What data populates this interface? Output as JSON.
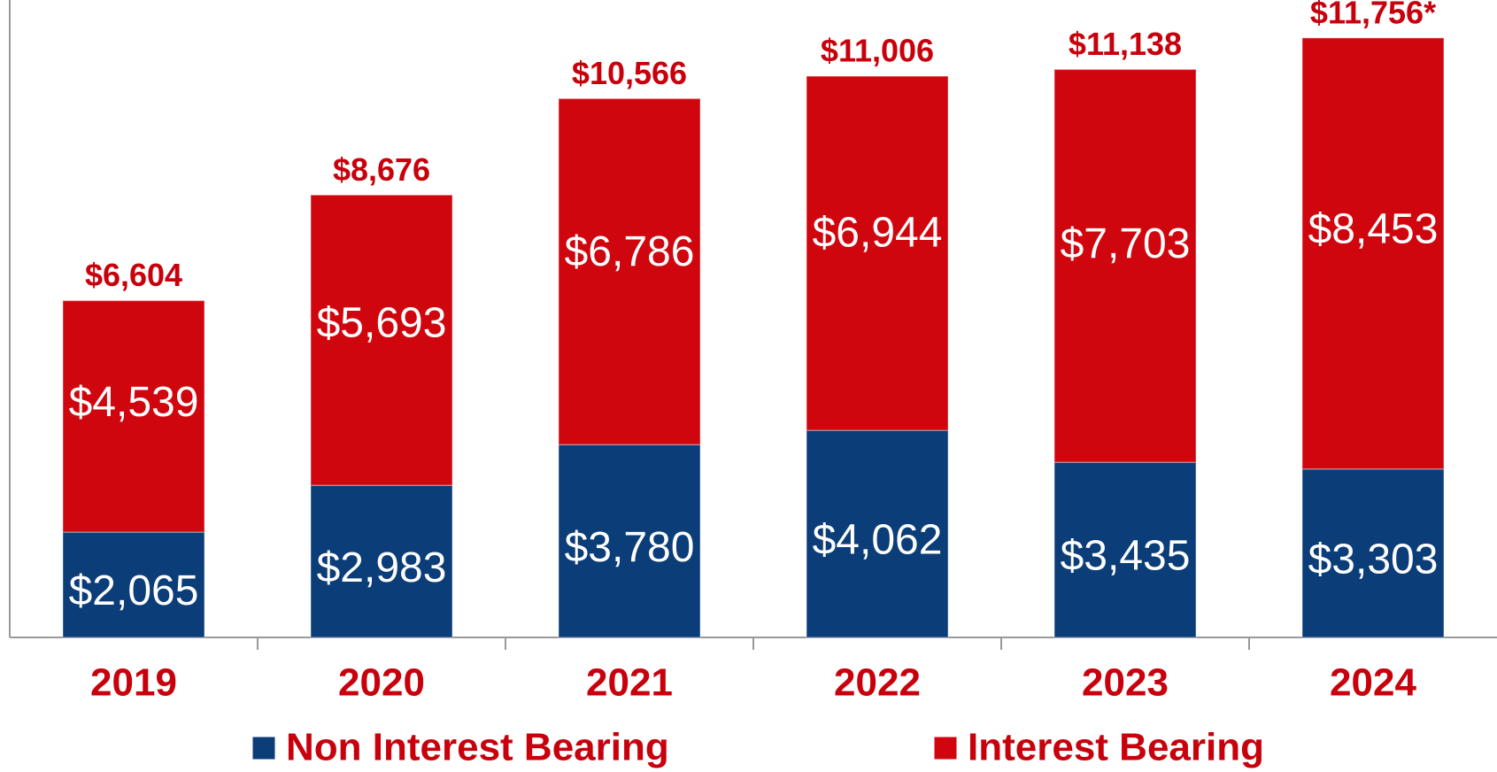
{
  "chart_data": {
    "type": "stacked_bar",
    "categories": [
      "2019",
      "2020",
      "2021",
      "2022",
      "2023",
      "2024"
    ],
    "series": [
      {
        "name": "Non Interest Bearing",
        "color": "#0b3d78",
        "values": [
          2065,
          2983,
          3780,
          4062,
          3435,
          3303
        ],
        "value_labels": [
          "$2,065",
          "$2,983",
          "$3,780",
          "$4,062",
          "$3,435",
          "$3,303"
        ]
      },
      {
        "name": "Interest Bearing",
        "color": "#d0060e",
        "values": [
          4539,
          5693,
          6786,
          6944,
          7703,
          8453
        ],
        "value_labels": [
          "$4,539",
          "$5,693",
          "$6,786",
          "$6,944",
          "$7,703",
          "$8,453"
        ]
      }
    ],
    "totals": [
      6604,
      8676,
      10566,
      11006,
      11138,
      11756
    ],
    "total_labels": [
      "$6,604",
      "$8,676",
      "$10,566",
      "$11,006",
      "$11,138",
      "$11,756*"
    ],
    "ylim": [
      0,
      12500
    ],
    "legend": "bottom"
  }
}
